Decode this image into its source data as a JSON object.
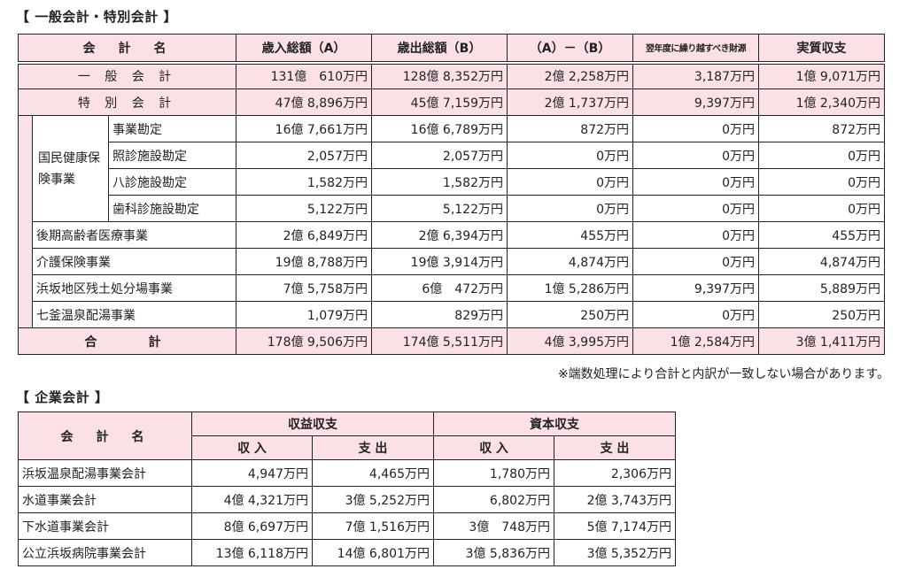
{
  "section1": {
    "title": "【 一般会計・特別会計 】",
    "headers": [
      "会　計　名",
      "歳入総額（A）",
      "歳出総額（B）",
      "（A）－（B）",
      "翌年度に繰り越すべき財源",
      "実質収支"
    ],
    "general": {
      "name": "一 般 会 計",
      "values": [
        "131億　610万円",
        "128億 8,352万円",
        "2億 2,258万円",
        "3,187万円",
        "1億 9,071万円"
      ]
    },
    "special": {
      "name": "特 別 会 計",
      "values": [
        "47億 8,896万円",
        "45億 7,159万円",
        "2億 1,737万円",
        "9,397万円",
        "1億 2,340万円"
      ]
    },
    "kokuho_group": "国民健康保険事業",
    "kokuho_rows": [
      {
        "name": "事業勘定",
        "values": [
          "16億 7,661万円",
          "16億 6,789万円",
          "872万円",
          "0万円",
          "872万円"
        ]
      },
      {
        "name": "照診施設勘定",
        "values": [
          "2,057万円",
          "2,057万円",
          "0万円",
          "0万円",
          "0万円"
        ]
      },
      {
        "name": "八診施設勘定",
        "values": [
          "1,582万円",
          "1,582万円",
          "0万円",
          "0万円",
          "0万円"
        ]
      },
      {
        "name": "歯科診施設勘定",
        "values": [
          "5,122万円",
          "5,122万円",
          "0万円",
          "0万円",
          "0万円"
        ]
      }
    ],
    "other_rows": [
      {
        "name": "後期高齢者医療事業",
        "values": [
          "2億 6,849万円",
          "2億 6,394万円",
          "455万円",
          "0万円",
          "455万円"
        ]
      },
      {
        "name": "介護保険事業",
        "values": [
          "19億 8,788万円",
          "19億 3,914万円",
          "4,874万円",
          "0万円",
          "4,874万円"
        ]
      },
      {
        "name": "浜坂地区残土処分場事業",
        "values": [
          "7億 5,758万円",
          "6億　472万円",
          "1億 5,286万円",
          "9,397万円",
          "5,889万円"
        ]
      },
      {
        "name": "七釜温泉配湯事業",
        "values": [
          "1,079万円",
          "829万円",
          "250万円",
          "0万円",
          "250万円"
        ]
      }
    ],
    "total": {
      "name": "合　　計",
      "values": [
        "178億 9,506万円",
        "174億 5,511万円",
        "4億 3,995万円",
        "1億 2,584万円",
        "3億 1,411万円"
      ]
    },
    "note": "※端数処理により合計と内訳が一致しない場合があります。"
  },
  "section2": {
    "title": "【 企業会計 】",
    "header_name": "会　計　名",
    "group_headers": [
      "収益収支",
      "資本収支"
    ],
    "sub_headers": [
      "収 入",
      "支 出",
      "収 入",
      "支 出"
    ],
    "rows": [
      {
        "name": "浜坂温泉配湯事業会計",
        "values": [
          "4,947万円",
          "4,465万円",
          "1,780万円",
          "2,306万円"
        ]
      },
      {
        "name": "水道事業会計",
        "values": [
          "4億 4,321万円",
          "3億 5,252万円",
          "6,802万円",
          "2億 3,743万円"
        ]
      },
      {
        "name": "下水道事業会計",
        "values": [
          "8億 6,697万円",
          "7億 1,516万円",
          "3億　748万円",
          "5億 7,174万円"
        ]
      },
      {
        "name": "公立浜坂病院事業会計",
        "values": [
          "13億 6,118万円",
          "14億 6,801万円",
          "3億 5,836万円",
          "3億 5,352万円"
        ]
      }
    ]
  },
  "colors": {
    "header_pink": "#fbe1e5",
    "border": "#222222"
  }
}
